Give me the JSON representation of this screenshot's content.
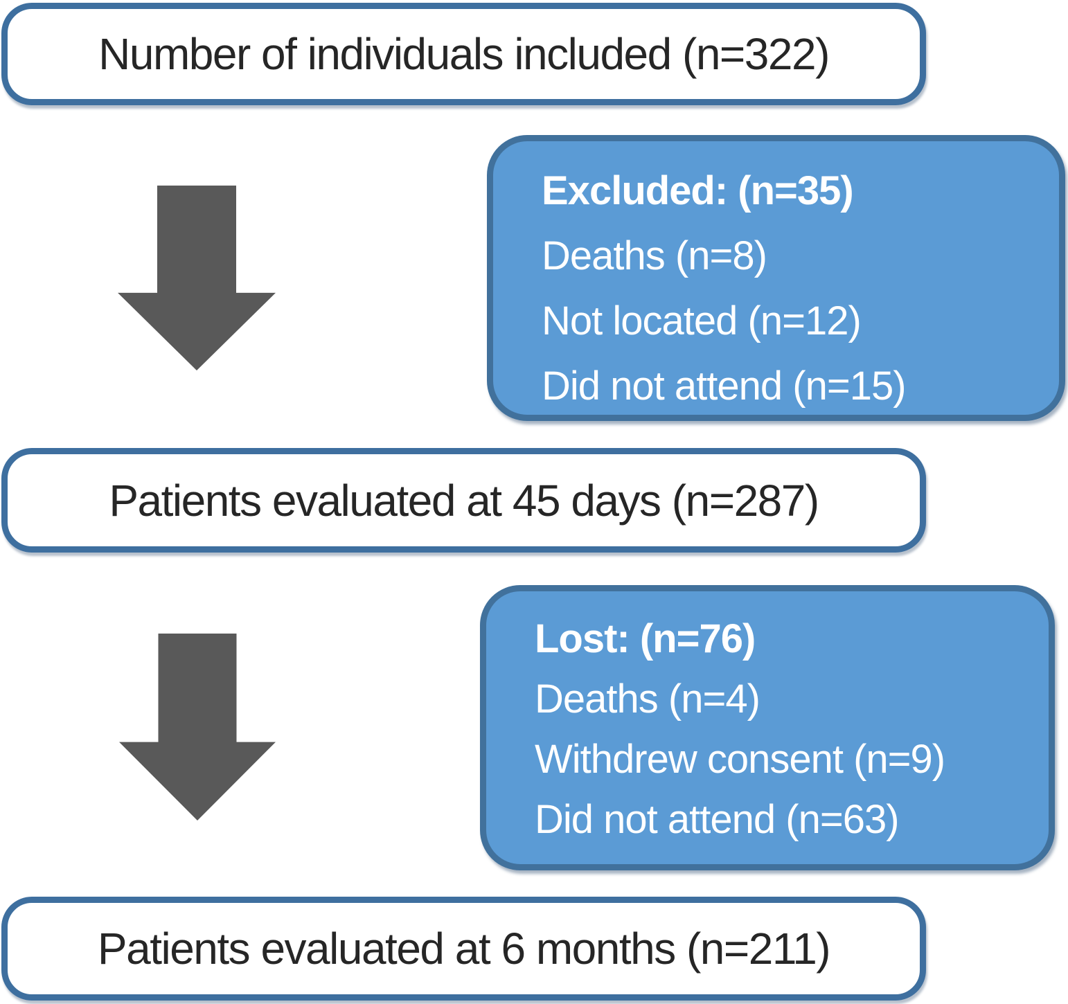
{
  "flow": {
    "included": {
      "label": "Number of individuals included (n=322)"
    },
    "excluded": {
      "heading": "Excluded: (n=35)",
      "items": [
        "Deaths (n=8)",
        "Not located (n=12)",
        "Did not attend (n=15)"
      ]
    },
    "evaluated_45_days": {
      "label": "Patients evaluated at 45 days (n=287)"
    },
    "lost": {
      "heading": "Lost: (n=76)",
      "items": [
        "Deaths (n=4)",
        "Withdrew consent (n=9)",
        "Did not attend (n=63)"
      ]
    },
    "evaluated_6_months": {
      "label": "Patients evaluated at 6 months (n=211)"
    }
  },
  "colors": {
    "box_fill_blue": "#5b9bd5",
    "box_border_blue": "#41719c",
    "white_box_border": "#3e6f9f",
    "arrow": "#595959",
    "text_dark": "#262626",
    "text_light": "#ffffff"
  }
}
